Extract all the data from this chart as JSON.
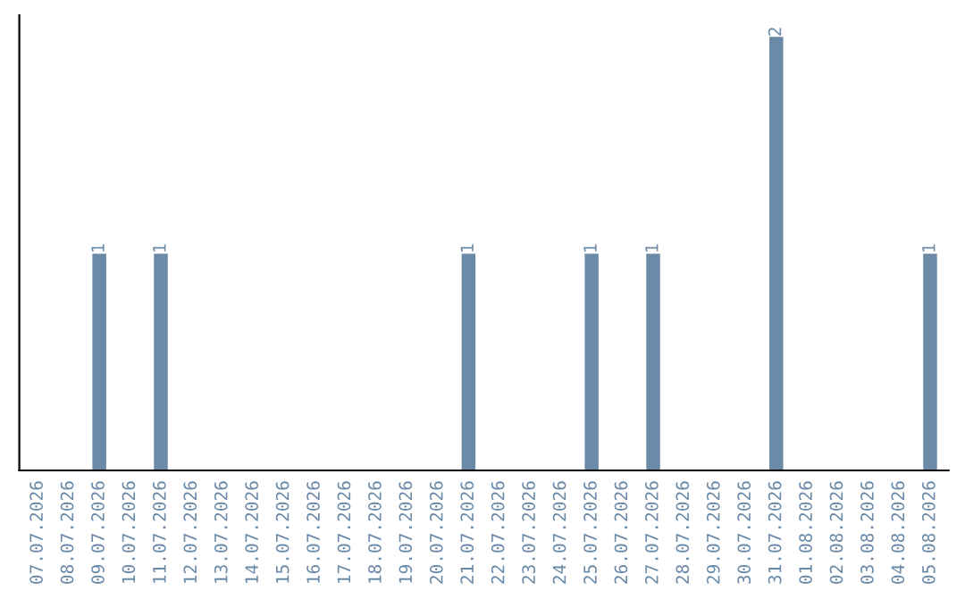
{
  "chart_data": {
    "type": "bar",
    "categories": [
      "07.07.2026",
      "08.07.2026",
      "09.07.2026",
      "10.07.2026",
      "11.07.2026",
      "12.07.2026",
      "13.07.2026",
      "14.07.2026",
      "15.07.2026",
      "16.07.2026",
      "17.07.2026",
      "18.07.2026",
      "19.07.2026",
      "20.07.2026",
      "21.07.2026",
      "22.07.2026",
      "23.07.2026",
      "24.07.2026",
      "25.07.2026",
      "26.07.2026",
      "27.07.2026",
      "28.07.2026",
      "29.07.2026",
      "30.07.2026",
      "31.07.2026",
      "01.08.2026",
      "02.08.2026",
      "03.08.2026",
      "04.08.2026",
      "05.08.2026"
    ],
    "values": [
      0,
      0,
      1,
      0,
      1,
      0,
      0,
      0,
      0,
      0,
      0,
      0,
      0,
      0,
      1,
      0,
      0,
      0,
      1,
      0,
      1,
      0,
      0,
      0,
      2,
      0,
      0,
      0,
      0,
      1
    ],
    "value_labels": [
      null,
      null,
      "1",
      null,
      "1",
      null,
      null,
      null,
      null,
      null,
      null,
      null,
      null,
      null,
      "1",
      null,
      null,
      null,
      "1",
      null,
      "1",
      null,
      null,
      null,
      "2",
      null,
      null,
      null,
      null,
      "1"
    ],
    "color": "#6b8aa8",
    "tick_labels": "x",
    "grid": false,
    "legend": false
  }
}
